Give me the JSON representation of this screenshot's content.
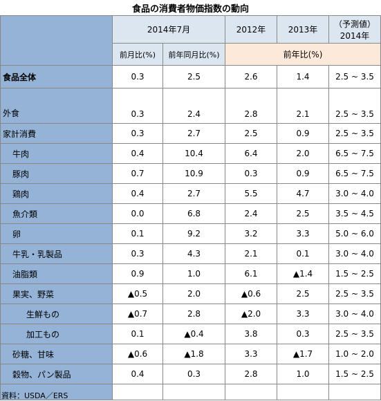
{
  "title": "食品の消費者物価指数の動向",
  "header": {
    "period": "2014年7月",
    "year2012": "2012年",
    "year2013": "2013年",
    "forecast": "（予測値）",
    "forecast_year": "2014年",
    "mom": "前月比(%)",
    "yoy_month": "前年同月比(%)",
    "yoy": "前年比(%)"
  },
  "rows": [
    {
      "label": "食品全体",
      "values": [
        "0.3",
        "2.5",
        "2.6",
        "1.4",
        "2.5 ~ 3.5"
      ]
    },
    {
      "label": "外食",
      "values": [
        "0.3",
        "2.4",
        "2.8",
        "2.1",
        "2.5 ~ 3.5"
      ]
    },
    {
      "label": "家計消費",
      "values": [
        "0.3",
        "2.7",
        "2.5",
        "0.9",
        "2.5 ~ 3.5"
      ]
    },
    {
      "label": "牛肉",
      "values": [
        "0.4",
        "10.4",
        "6.4",
        "2.0",
        "6.5 ~ 7.5"
      ]
    },
    {
      "label": "豚肉",
      "values": [
        "0.7",
        "10.9",
        "0.3",
        "0.9",
        "6.5 ~ 7.5"
      ]
    },
    {
      "label": "鶏肉",
      "values": [
        "0.4",
        "2.7",
        "5.5",
        "4.7",
        "3.0 ~ 4.0"
      ]
    },
    {
      "label": "魚介類",
      "values": [
        "0.0",
        "6.8",
        "2.4",
        "2.5",
        "3.5 ~ 4.5"
      ]
    },
    {
      "label": "卵",
      "values": [
        "0.1",
        "9.2",
        "3.2",
        "3.3",
        "5.0 ~ 6.0"
      ]
    },
    {
      "label": "牛乳・乳製品",
      "values": [
        "0.3",
        "4.3",
        "2.1",
        "0.1",
        "3.0 ~ 4.0"
      ]
    },
    {
      "label": "油脂類",
      "values": [
        "0.9",
        "1.0",
        "6.1",
        "▲1.4",
        "1.5 ~ 2.5"
      ]
    },
    {
      "label": "果実、野菜",
      "values": [
        "▲0.5",
        "2.0",
        "▲0.6",
        "2.5",
        "2.5 ~ 3.5"
      ]
    },
    {
      "label": "生鮮もの",
      "values": [
        "▲0.7",
        "2.8",
        "▲2.0",
        "3.3",
        "3.0 ~ 4.0"
      ]
    },
    {
      "label": "加工もの",
      "values": [
        "0.1",
        "▲0.4",
        "3.8",
        "0.3",
        "2.5 ~ 3.5"
      ]
    },
    {
      "label": "砂糖、甘味",
      "values": [
        "▲0.6",
        "▲1.8",
        "3.3",
        "▲1.7",
        "1.0 ~ 2.0"
      ]
    },
    {
      "label": "穀物、パン製品",
      "values": [
        "0.4",
        "0.3",
        "2.8",
        "1.0",
        "1.5 ~ 2.5"
      ]
    }
  ],
  "source": "資料：USDA／ERS"
}
